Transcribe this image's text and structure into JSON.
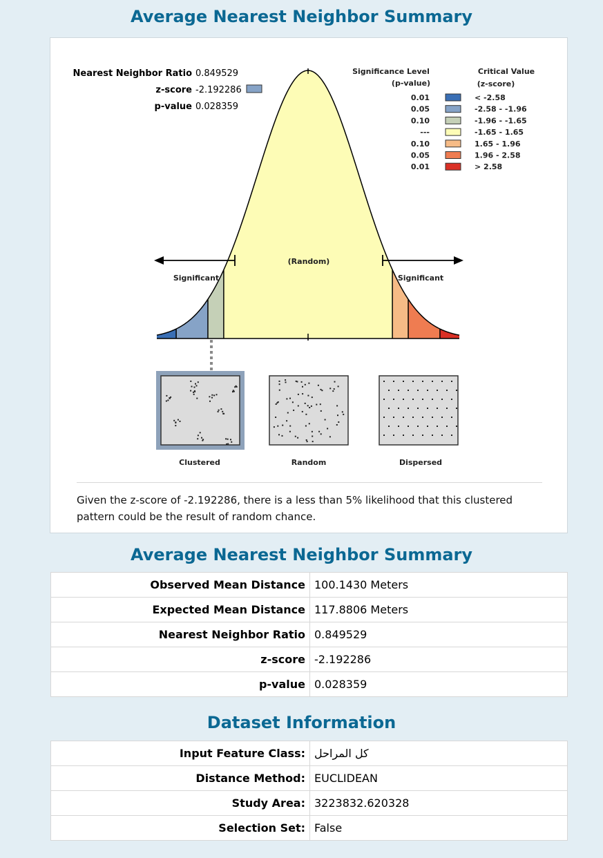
{
  "report": {
    "title": "Average Nearest Neighbor Summary",
    "stats_labels": {
      "ratio_label": "Nearest Neighbor Ratio",
      "ratio_value": "0.849529",
      "z_label": "z-score",
      "z_value": "-2.192286",
      "p_label": "p-value",
      "p_value": "0.028359"
    },
    "legend": {
      "sig_header_line1": "Significance Level",
      "sig_header_line2": "(p-value)",
      "crit_header_line1": "Critical Value",
      "crit_header_line2": "(z-score)",
      "rows": [
        {
          "p": "0.01",
          "z": "< -2.58",
          "color": "#3a6fb5"
        },
        {
          "p": "0.05",
          "z": "-2.58 - -1.96",
          "color": "#86a3c7"
        },
        {
          "p": "0.10",
          "z": "-1.96 - -1.65",
          "color": "#c5d0b7"
        },
        {
          "p": "---",
          "z": "-1.65 - 1.65",
          "color": "#fdfcb6"
        },
        {
          "p": "0.10",
          "z": "1.65 - 1.96",
          "color": "#f6bb86"
        },
        {
          "p": "0.05",
          "z": "1.96 - 2.58",
          "color": "#ef7c51"
        },
        {
          "p": "0.01",
          "z": "> 2.58",
          "color": "#da3025"
        }
      ]
    },
    "curve_labels": {
      "random": "(Random)",
      "significant_left": "Significant",
      "significant_right": "Significant"
    },
    "patterns": [
      {
        "label": "Clustered",
        "selected": true
      },
      {
        "label": "Random",
        "selected": false
      },
      {
        "label": "Dispersed",
        "selected": false
      }
    ],
    "conclusion": "Given the z-score of -2.192286, there is a less than 5% likelihood that this clustered pattern could be the result of random chance."
  },
  "summary": {
    "title": "Average Nearest Neighbor Summary",
    "rows": [
      {
        "label": "Observed Mean Distance",
        "value": "100.1430 Meters"
      },
      {
        "label": "Expected Mean Distance",
        "value": "117.8806 Meters"
      },
      {
        "label": "Nearest Neighbor Ratio",
        "value": "0.849529"
      },
      {
        "label": "z-score",
        "value": "-2.192286"
      },
      {
        "label": "p-value",
        "value": "0.028359"
      }
    ]
  },
  "dataset": {
    "title": "Dataset Information",
    "rows": [
      {
        "label": "Input Feature Class:",
        "value": "كل المراحل"
      },
      {
        "label": "Distance Method:",
        "value": "EUCLIDEAN"
      },
      {
        "label": "Study Area:",
        "value": "3223832.620328"
      },
      {
        "label": "Selection Set:",
        "value": "False"
      }
    ]
  }
}
